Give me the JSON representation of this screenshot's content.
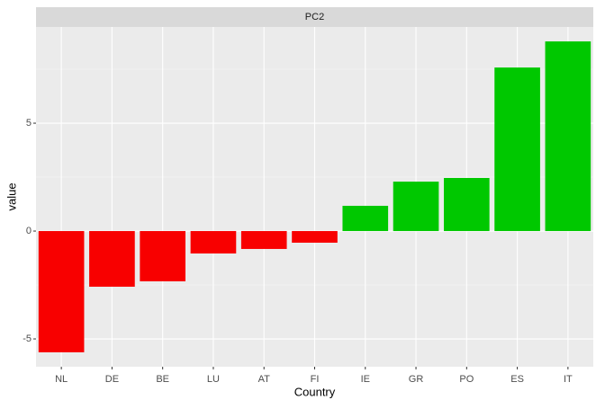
{
  "chart_data": {
    "type": "bar",
    "facet": "PC2",
    "x_label": "Country",
    "y_label": "value",
    "categories": [
      "NL",
      "DE",
      "BE",
      "LU",
      "AT",
      "FI",
      "IE",
      "GR",
      "PO",
      "ES",
      "IT"
    ],
    "values": [
      -5.62,
      -2.58,
      -2.33,
      -1.04,
      -0.83,
      -0.54,
      1.17,
      2.29,
      2.46,
      7.58,
      8.79
    ],
    "colors": [
      "#f80000",
      "#f80000",
      "#f80000",
      "#f80000",
      "#f80000",
      "#f80000",
      "#00c800",
      "#00c800",
      "#00c800",
      "#00c800",
      "#00c800"
    ],
    "ylim": [
      -6.29,
      9.46
    ],
    "yticks": [
      -5,
      0,
      5
    ],
    "grid": true
  }
}
